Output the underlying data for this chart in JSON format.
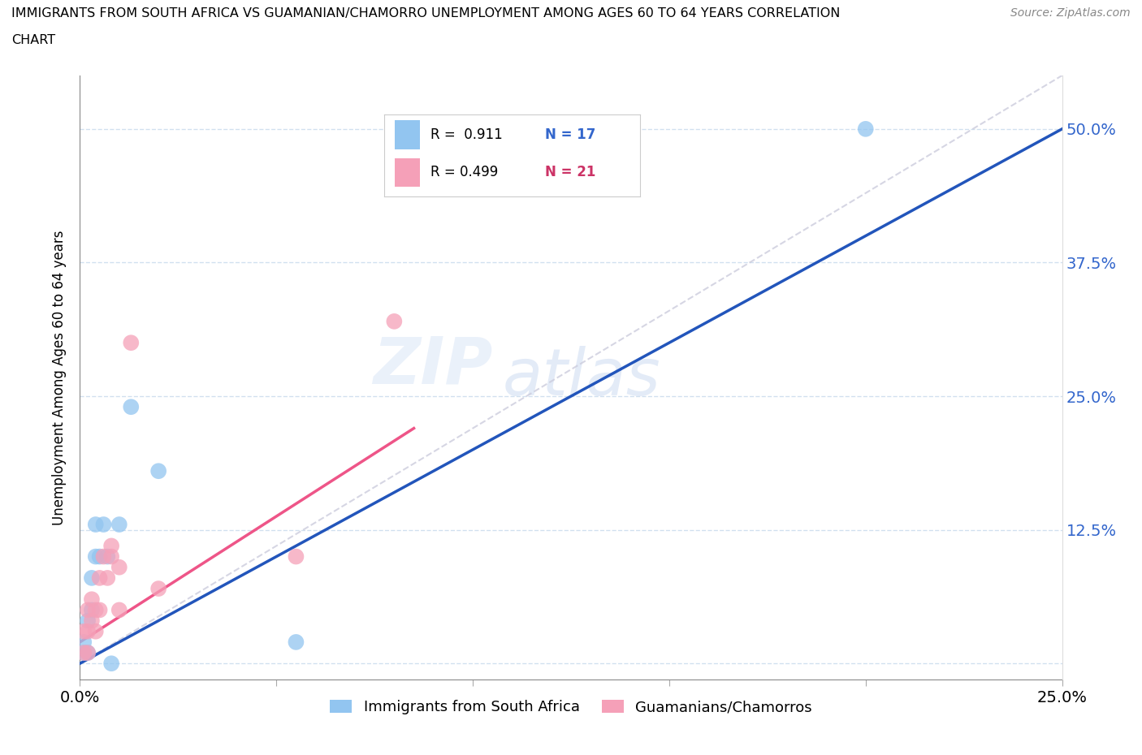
{
  "title_line1": "IMMIGRANTS FROM SOUTH AFRICA VS GUAMANIAN/CHAMORRO UNEMPLOYMENT AMONG AGES 60 TO 64 YEARS CORRELATION",
  "title_line2": "CHART",
  "source_text": "Source: ZipAtlas.com",
  "ylabel_label": "Unemployment Among Ages 60 to 64 years",
  "xlim": [
    0.0,
    0.25
  ],
  "ylim": [
    -0.01,
    0.55
  ],
  "ytick_values": [
    0.125,
    0.25,
    0.375,
    0.5
  ],
  "xtick_values": [
    0.0,
    0.05,
    0.1,
    0.15,
    0.2,
    0.25
  ],
  "color_blue": "#92c5f0",
  "color_pink": "#f5a0b8",
  "color_blue_text": "#3366cc",
  "color_pink_text": "#cc3366",
  "color_line_blue": "#2255bb",
  "color_line_pink": "#ee5588",
  "color_ref_line": "#ccccdd",
  "watermark_zip": "ZIP",
  "watermark_atlas": "atlas",
  "series1_label": "Immigrants from South Africa",
  "series2_label": "Guamanians/Chamorros",
  "legend_r1": "R =  0.911",
  "legend_n1": "N = 17",
  "legend_r2": "R = 0.499",
  "legend_n2": "N = 21",
  "sa_x": [
    0.001,
    0.001,
    0.002,
    0.002,
    0.003,
    0.003,
    0.004,
    0.004,
    0.005,
    0.006,
    0.007,
    0.008,
    0.01,
    0.013,
    0.02,
    0.055,
    0.2
  ],
  "sa_y": [
    0.01,
    0.02,
    0.01,
    0.04,
    0.05,
    0.08,
    0.1,
    0.13,
    0.1,
    0.13,
    0.1,
    0.0,
    0.13,
    0.24,
    0.18,
    0.02,
    0.5
  ],
  "gu_x": [
    0.001,
    0.001,
    0.002,
    0.002,
    0.002,
    0.003,
    0.003,
    0.004,
    0.004,
    0.005,
    0.005,
    0.006,
    0.007,
    0.008,
    0.008,
    0.01,
    0.01,
    0.013,
    0.02,
    0.055,
    0.08
  ],
  "gu_y": [
    0.01,
    0.03,
    0.01,
    0.03,
    0.05,
    0.04,
    0.06,
    0.03,
    0.05,
    0.05,
    0.08,
    0.1,
    0.08,
    0.1,
    0.11,
    0.05,
    0.09,
    0.3,
    0.07,
    0.1,
    0.32
  ],
  "blue_line_x": [
    0.0,
    0.25
  ],
  "blue_line_y": [
    0.0,
    0.5
  ],
  "pink_line_x": [
    0.0,
    0.085
  ],
  "pink_line_y": [
    0.02,
    0.22
  ],
  "ref_line_x": [
    0.0,
    0.25
  ],
  "ref_line_y": [
    0.0,
    0.55
  ]
}
